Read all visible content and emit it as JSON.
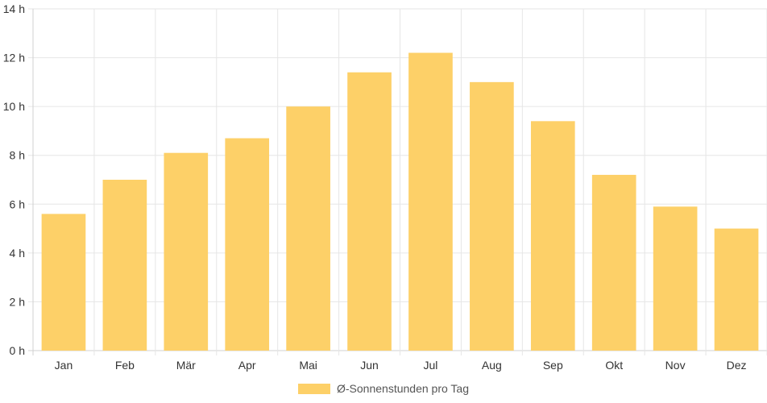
{
  "chart_data": {
    "type": "bar",
    "categories": [
      "Jan",
      "Feb",
      "Mär",
      "Apr",
      "Mai",
      "Jun",
      "Jul",
      "Aug",
      "Sep",
      "Okt",
      "Nov",
      "Dez"
    ],
    "series": [
      {
        "name": "Ø-Sonnenstunden pro Tag",
        "values": [
          5.6,
          7.0,
          8.1,
          8.7,
          10.0,
          11.4,
          12.2,
          11.0,
          9.4,
          7.2,
          5.9,
          5.0
        ]
      }
    ],
    "y_ticks": [
      "0 h",
      "2 h",
      "4 h",
      "6 h",
      "8 h",
      "10 h",
      "12 h",
      "14 h"
    ],
    "ylim": [
      0,
      14
    ],
    "y_step": 2,
    "grid": true,
    "legend_position": "bottom",
    "colors": {
      "bar": "#fdd068",
      "grid": "#e6e6e6",
      "axis": "#d0d0d0"
    }
  }
}
